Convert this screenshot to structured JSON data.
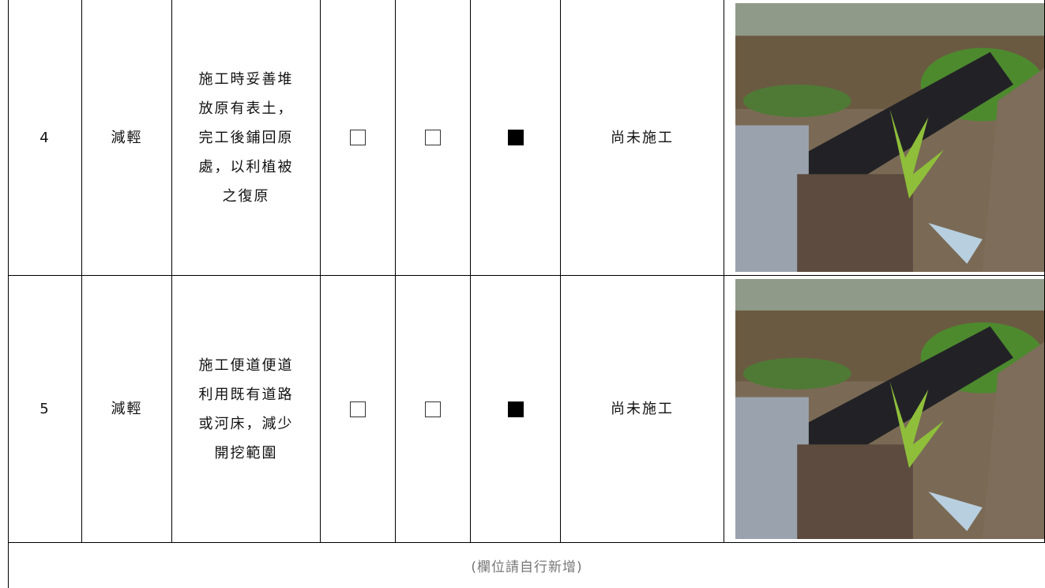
{
  "table": {
    "rows": [
      {
        "no": "4",
        "type": "減輕",
        "measure": [
          "施工時妥善堆",
          "放原有表土，",
          "完工後鋪回原",
          "處，以利植被",
          "之復原"
        ],
        "checks": [
          false,
          false,
          true
        ],
        "status": "尚未施工"
      },
      {
        "no": "5",
        "type": "減輕",
        "measure": [
          "施工便道便道",
          "利用既有道路",
          "或河床，減少",
          "開挖範圍"
        ],
        "checks": [
          false,
          false,
          true
        ],
        "status": "尚未施工"
      }
    ],
    "footer": "(欄位請自行新增)"
  }
}
